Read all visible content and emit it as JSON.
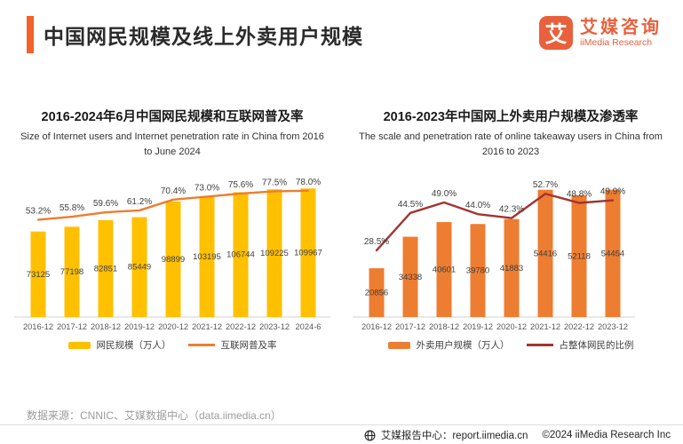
{
  "header": {
    "title": "中国网民规模及线上外卖用户规模",
    "logo": {
      "mark": "艾",
      "name_cn": "艾媒咨询",
      "name_en": "iiMedia Research",
      "color": "#E8613C"
    }
  },
  "accent_color": "#F2622A",
  "chart_data": [
    {
      "type": "bar+line",
      "title": "2016-2024年6月中国网民规模和互联网普及率",
      "subtitle": "Size of Internet users and Internet penetration rate in China from 2016 to June 2024",
      "categories": [
        "2016-12",
        "2017-12",
        "2018-12",
        "2019-12",
        "2020-12",
        "2021-12",
        "2022-12",
        "2023-12",
        "2024-6"
      ],
      "series": [
        {
          "name": "网民规模（万人）",
          "type": "bar",
          "color": "#FFC000",
          "values": [
            73125,
            77198,
            82851,
            85449,
            98899,
            103195,
            106744,
            109225,
            109967
          ],
          "axis_max": 120000
        },
        {
          "name": "互联网普及率",
          "type": "line",
          "color": "#ED7D31",
          "unit": "%",
          "values": [
            53.2,
            55.8,
            59.6,
            61.2,
            70.4,
            73.0,
            75.6,
            77.5,
            78.0
          ],
          "axis_range": [
            -30,
            90
          ]
        }
      ],
      "legend_position": "bottom",
      "grid": false
    },
    {
      "type": "bar+line",
      "title": "2016-2023年中国网上外卖用户规模及渗透率",
      "subtitle": "The scale and penetration rate of online takeaway users in China from 2016 to 2023",
      "categories": [
        "2016-12",
        "2017-12",
        "2018-12",
        "2019-12",
        "2020-12",
        "2021-12",
        "2022-12",
        "2023-12"
      ],
      "series": [
        {
          "name": "外卖用户规模（万人）",
          "type": "bar",
          "color": "#ED7D31",
          "values": [
            20856,
            34338,
            40601,
            39780,
            41883,
            54416,
            52118,
            54454
          ],
          "axis_max": 60000
        },
        {
          "name": "占整体网民的比例",
          "type": "line",
          "color": "#A3342F",
          "unit": "%",
          "values": [
            28.5,
            44.5,
            49.0,
            44.0,
            42.3,
            52.7,
            48.8,
            49.9
          ],
          "axis_range": [
            0,
            60
          ]
        }
      ],
      "legend_position": "bottom",
      "grid": false
    }
  ],
  "footer": {
    "source": "数据来源：CNNIC、艾媒数据中心（data.iimedia.cn）",
    "report_center": "艾媒报告中心：report.iimedia.cn",
    "copyright": "©2024  iiMedia Research Inc"
  }
}
